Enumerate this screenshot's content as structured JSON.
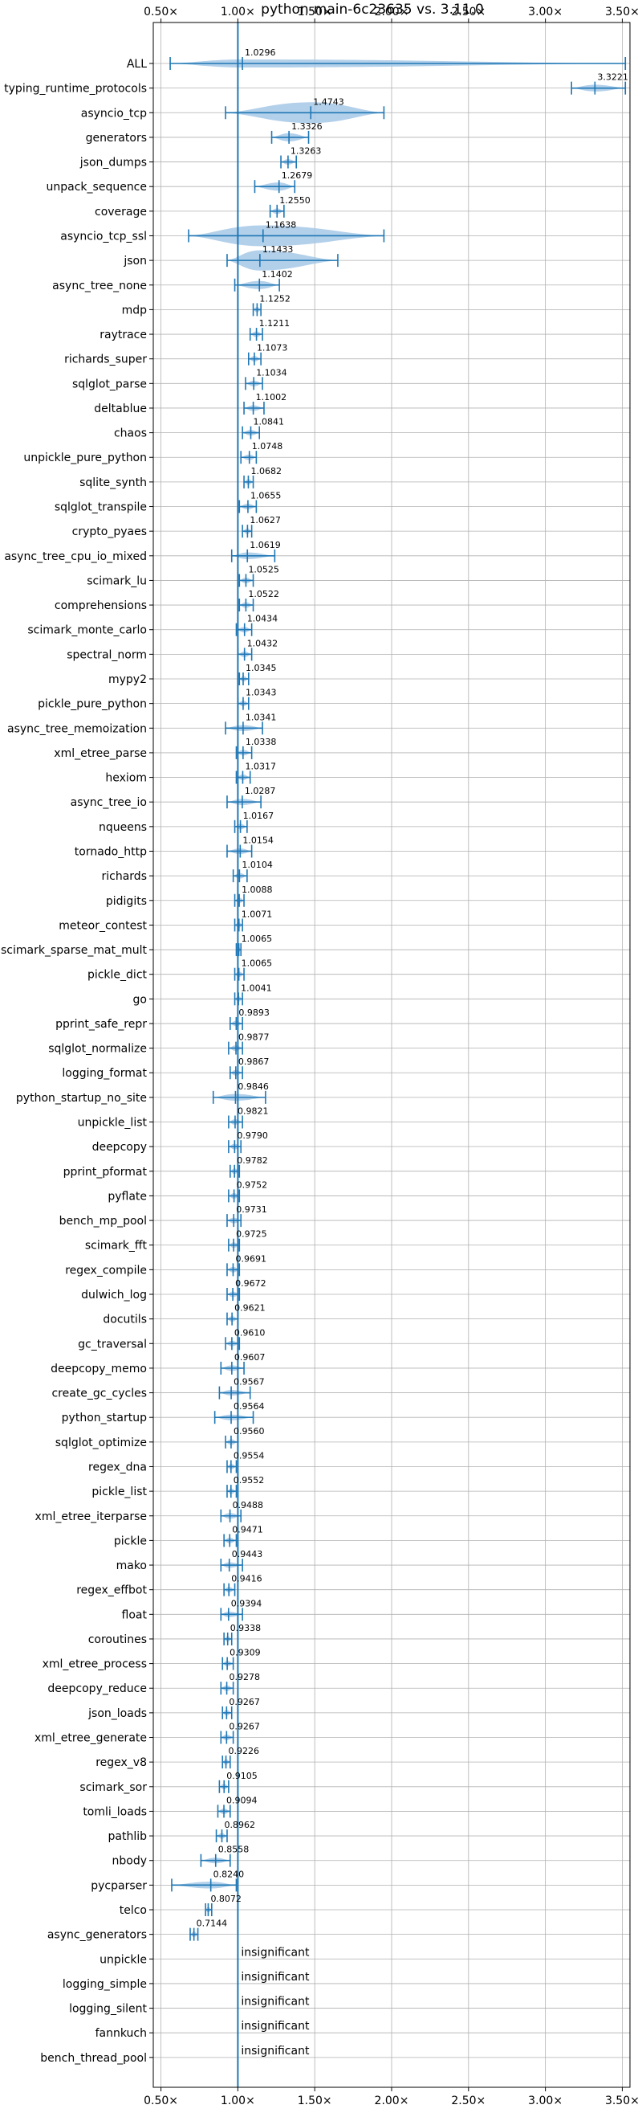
{
  "chart_data": {
    "type": "violin",
    "title": "python-main-6c23635 vs. 3.11.0",
    "xlim": [
      0.45,
      3.55
    ],
    "xticks": [
      0.5,
      1.0,
      1.5,
      2.0,
      2.5,
      3.0,
      3.5
    ],
    "xtick_labels": [
      "0.50×",
      "1.00×",
      "1.50×",
      "2.00×",
      "2.50×",
      "3.00×",
      "3.50×"
    ],
    "grid": true,
    "reference_line": 1.0,
    "colors": {
      "line": "#1f77b4",
      "violin": "#a6c8e6",
      "grid": "#b0b0b0"
    },
    "insignificant_text": "insignificant",
    "benchmarks": [
      {
        "name": "ALL",
        "label": "1.0296",
        "median": 1.0296,
        "min": 0.56,
        "max": 3.52,
        "w": 0.12
      },
      {
        "name": "typing_runtime_protocols",
        "label": "3.3221",
        "median": 3.3221,
        "min": 3.17,
        "max": 3.52,
        "w": 0.1
      },
      {
        "name": "asyncio_tcp",
        "label": "1.4743",
        "median": 1.4743,
        "min": 0.92,
        "max": 1.95,
        "w": 0.42
      },
      {
        "name": "generators",
        "label": "1.3326",
        "median": 1.3326,
        "min": 1.22,
        "max": 1.46,
        "w": 0.12
      },
      {
        "name": "json_dumps",
        "label": "1.3263",
        "median": 1.3263,
        "min": 1.28,
        "max": 1.38,
        "w": 0.06
      },
      {
        "name": "unpack_sequence",
        "label": "1.2679",
        "median": 1.2679,
        "min": 1.11,
        "max": 1.37,
        "w": 0.12
      },
      {
        "name": "coverage",
        "label": "1.2550",
        "median": 1.255,
        "min": 1.21,
        "max": 1.3,
        "w": 0.05
      },
      {
        "name": "asyncio_tcp_ssl",
        "label": "1.1638",
        "median": 1.1638,
        "min": 0.68,
        "max": 1.95,
        "w": 0.4
      },
      {
        "name": "json",
        "label": "1.1433",
        "median": 1.1433,
        "min": 0.93,
        "max": 1.65,
        "w": 0.3
      },
      {
        "name": "async_tree_none",
        "label": "1.1402",
        "median": 1.1402,
        "min": 0.98,
        "max": 1.27,
        "w": 0.12
      },
      {
        "name": "mdp",
        "label": "1.1252",
        "median": 1.1252,
        "min": 1.1,
        "max": 1.15,
        "w": 0.03
      },
      {
        "name": "raytrace",
        "label": "1.1211",
        "median": 1.1211,
        "min": 1.08,
        "max": 1.16,
        "w": 0.04
      },
      {
        "name": "richards_super",
        "label": "1.1073",
        "median": 1.1073,
        "min": 1.07,
        "max": 1.15,
        "w": 0.04
      },
      {
        "name": "sqlglot_parse",
        "label": "1.1034",
        "median": 1.1034,
        "min": 1.05,
        "max": 1.16,
        "w": 0.05
      },
      {
        "name": "deltablue",
        "label": "1.1002",
        "median": 1.1002,
        "min": 1.04,
        "max": 1.17,
        "w": 0.06
      },
      {
        "name": "chaos",
        "label": "1.0841",
        "median": 1.0841,
        "min": 1.03,
        "max": 1.14,
        "w": 0.05
      },
      {
        "name": "unpickle_pure_python",
        "label": "1.0748",
        "median": 1.0748,
        "min": 1.02,
        "max": 1.12,
        "w": 0.05
      },
      {
        "name": "sqlite_synth",
        "label": "1.0682",
        "median": 1.0682,
        "min": 1.04,
        "max": 1.1,
        "w": 0.03
      },
      {
        "name": "sqlglot_transpile",
        "label": "1.0655",
        "median": 1.0655,
        "min": 1.01,
        "max": 1.12,
        "w": 0.05
      },
      {
        "name": "crypto_pyaes",
        "label": "1.0627",
        "median": 1.0627,
        "min": 1.03,
        "max": 1.09,
        "w": 0.03
      },
      {
        "name": "async_tree_cpu_io_mixed",
        "label": "1.0619",
        "median": 1.0619,
        "min": 0.96,
        "max": 1.24,
        "w": 0.1
      },
      {
        "name": "scimark_lu",
        "label": "1.0525",
        "median": 1.0525,
        "min": 1.01,
        "max": 1.1,
        "w": 0.04
      },
      {
        "name": "comprehensions",
        "label": "1.0522",
        "median": 1.0522,
        "min": 1.01,
        "max": 1.1,
        "w": 0.04
      },
      {
        "name": "scimark_monte_carlo",
        "label": "1.0434",
        "median": 1.0434,
        "min": 0.99,
        "max": 1.09,
        "w": 0.04
      },
      {
        "name": "spectral_norm",
        "label": "1.0432",
        "median": 1.0432,
        "min": 1.0,
        "max": 1.09,
        "w": 0.04
      },
      {
        "name": "mypy2",
        "label": "1.0345",
        "median": 1.0345,
        "min": 1.01,
        "max": 1.07,
        "w": 0.03
      },
      {
        "name": "pickle_pure_python",
        "label": "1.0343",
        "median": 1.0343,
        "min": 1.0,
        "max": 1.07,
        "w": 0.03
      },
      {
        "name": "async_tree_memoization",
        "label": "1.0341",
        "median": 1.0341,
        "min": 0.92,
        "max": 1.16,
        "w": 0.09
      },
      {
        "name": "xml_etree_parse",
        "label": "1.0338",
        "median": 1.0338,
        "min": 0.99,
        "max": 1.09,
        "w": 0.04
      },
      {
        "name": "hexiom",
        "label": "1.0317",
        "median": 1.0317,
        "min": 0.99,
        "max": 1.08,
        "w": 0.04
      },
      {
        "name": "async_tree_io",
        "label": "1.0287",
        "median": 1.0287,
        "min": 0.93,
        "max": 1.15,
        "w": 0.09
      },
      {
        "name": "nqueens",
        "label": "1.0167",
        "median": 1.0167,
        "min": 0.98,
        "max": 1.06,
        "w": 0.04
      },
      {
        "name": "tornado_http",
        "label": "1.0154",
        "median": 1.0154,
        "min": 0.93,
        "max": 1.09,
        "w": 0.06
      },
      {
        "name": "richards",
        "label": "1.0104",
        "median": 1.0104,
        "min": 0.97,
        "max": 1.06,
        "w": 0.04
      },
      {
        "name": "pidigits",
        "label": "1.0088",
        "median": 1.0088,
        "min": 0.98,
        "max": 1.04,
        "w": 0.03
      },
      {
        "name": "meteor_contest",
        "label": "1.0071",
        "median": 1.0071,
        "min": 0.98,
        "max": 1.03,
        "w": 0.03
      },
      {
        "name": "scimark_sparse_mat_mult",
        "label": "1.0065",
        "median": 1.0065,
        "min": 0.99,
        "max": 1.02,
        "w": 0.02
      },
      {
        "name": "pickle_dict",
        "label": "1.0065",
        "median": 1.0065,
        "min": 0.98,
        "max": 1.04,
        "w": 0.03
      },
      {
        "name": "go",
        "label": "1.0041",
        "median": 1.0041,
        "min": 0.98,
        "max": 1.03,
        "w": 0.03
      },
      {
        "name": "pprint_safe_repr",
        "label": "0.9893",
        "median": 0.9893,
        "min": 0.95,
        "max": 1.03,
        "w": 0.04
      },
      {
        "name": "sqlglot_normalize",
        "label": "0.9877",
        "median": 0.9877,
        "min": 0.94,
        "max": 1.03,
        "w": 0.04
      },
      {
        "name": "logging_format",
        "label": "0.9867",
        "median": 0.9867,
        "min": 0.95,
        "max": 1.03,
        "w": 0.04
      },
      {
        "name": "python_startup_no_site",
        "label": "0.9846",
        "median": 0.9846,
        "min": 0.84,
        "max": 1.18,
        "w": 0.1
      },
      {
        "name": "unpickle_list",
        "label": "0.9821",
        "median": 0.9821,
        "min": 0.94,
        "max": 1.03,
        "w": 0.04
      },
      {
        "name": "deepcopy",
        "label": "0.9790",
        "median": 0.979,
        "min": 0.94,
        "max": 1.02,
        "w": 0.04
      },
      {
        "name": "pprint_pformat",
        "label": "0.9782",
        "median": 0.9782,
        "min": 0.95,
        "max": 1.01,
        "w": 0.03
      },
      {
        "name": "pyflate",
        "label": "0.9752",
        "median": 0.9752,
        "min": 0.94,
        "max": 1.01,
        "w": 0.03
      },
      {
        "name": "bench_mp_pool",
        "label": "0.9731",
        "median": 0.9731,
        "min": 0.93,
        "max": 1.02,
        "w": 0.04
      },
      {
        "name": "scimark_fft",
        "label": "0.9725",
        "median": 0.9725,
        "min": 0.94,
        "max": 1.01,
        "w": 0.03
      },
      {
        "name": "regex_compile",
        "label": "0.9691",
        "median": 0.9691,
        "min": 0.93,
        "max": 1.01,
        "w": 0.04
      },
      {
        "name": "dulwich_log",
        "label": "0.9672",
        "median": 0.9672,
        "min": 0.93,
        "max": 1.01,
        "w": 0.04
      },
      {
        "name": "docutils",
        "label": "0.9621",
        "median": 0.9621,
        "min": 0.93,
        "max": 1.0,
        "w": 0.03
      },
      {
        "name": "gc_traversal",
        "label": "0.9610",
        "median": 0.961,
        "min": 0.92,
        "max": 1.01,
        "w": 0.04
      },
      {
        "name": "deepcopy_memo",
        "label": "0.9607",
        "median": 0.9607,
        "min": 0.89,
        "max": 1.04,
        "w": 0.06
      },
      {
        "name": "create_gc_cycles",
        "label": "0.9567",
        "median": 0.9567,
        "min": 0.88,
        "max": 1.08,
        "w": 0.07
      },
      {
        "name": "python_startup",
        "label": "0.9564",
        "median": 0.9564,
        "min": 0.85,
        "max": 1.1,
        "w": 0.08
      },
      {
        "name": "sqlglot_optimize",
        "label": "0.9560",
        "median": 0.956,
        "min": 0.92,
        "max": 1.0,
        "w": 0.04
      },
      {
        "name": "regex_dna",
        "label": "0.9554",
        "median": 0.9554,
        "min": 0.93,
        "max": 0.99,
        "w": 0.03
      },
      {
        "name": "pickle_list",
        "label": "0.9552",
        "median": 0.9552,
        "min": 0.93,
        "max": 0.99,
        "w": 0.03
      },
      {
        "name": "xml_etree_iterparse",
        "label": "0.9488",
        "median": 0.9488,
        "min": 0.89,
        "max": 1.02,
        "w": 0.05
      },
      {
        "name": "pickle",
        "label": "0.9471",
        "median": 0.9471,
        "min": 0.91,
        "max": 0.99,
        "w": 0.04
      },
      {
        "name": "mako",
        "label": "0.9443",
        "median": 0.9443,
        "min": 0.89,
        "max": 1.03,
        "w": 0.05
      },
      {
        "name": "regex_effbot",
        "label": "0.9416",
        "median": 0.9416,
        "min": 0.91,
        "max": 0.98,
        "w": 0.03
      },
      {
        "name": "float",
        "label": "0.9394",
        "median": 0.9394,
        "min": 0.89,
        "max": 1.03,
        "w": 0.05
      },
      {
        "name": "coroutines",
        "label": "0.9338",
        "median": 0.9338,
        "min": 0.91,
        "max": 0.96,
        "w": 0.03
      },
      {
        "name": "xml_etree_process",
        "label": "0.9309",
        "median": 0.9309,
        "min": 0.9,
        "max": 0.97,
        "w": 0.03
      },
      {
        "name": "deepcopy_reduce",
        "label": "0.9278",
        "median": 0.9278,
        "min": 0.89,
        "max": 0.97,
        "w": 0.04
      },
      {
        "name": "json_loads",
        "label": "0.9267",
        "median": 0.9267,
        "min": 0.9,
        "max": 0.96,
        "w": 0.03
      },
      {
        "name": "xml_etree_generate",
        "label": "0.9267",
        "median": 0.9267,
        "min": 0.89,
        "max": 0.97,
        "w": 0.04
      },
      {
        "name": "regex_v8",
        "label": "0.9226",
        "median": 0.9226,
        "min": 0.9,
        "max": 0.95,
        "w": 0.03
      },
      {
        "name": "scimark_sor",
        "label": "0.9105",
        "median": 0.9105,
        "min": 0.88,
        "max": 0.94,
        "w": 0.03
      },
      {
        "name": "tomli_loads",
        "label": "0.9094",
        "median": 0.9094,
        "min": 0.87,
        "max": 0.95,
        "w": 0.04
      },
      {
        "name": "pathlib",
        "label": "0.8962",
        "median": 0.8962,
        "min": 0.86,
        "max": 0.93,
        "w": 0.03
      },
      {
        "name": "nbody",
        "label": "0.8558",
        "median": 0.8558,
        "min": 0.76,
        "max": 0.95,
        "w": 0.06
      },
      {
        "name": "pycparser",
        "label": "0.8240",
        "median": 0.824,
        "min": 0.57,
        "max": 0.99,
        "w": 0.1
      },
      {
        "name": "telco",
        "label": "0.8072",
        "median": 0.8072,
        "min": 0.79,
        "max": 0.83,
        "w": 0.03
      },
      {
        "name": "async_generators",
        "label": "0.7144",
        "median": 0.7144,
        "min": 0.69,
        "max": 0.74,
        "w": 0.03
      },
      {
        "name": "unpickle",
        "insignificant": true
      },
      {
        "name": "logging_simple",
        "insignificant": true
      },
      {
        "name": "logging_silent",
        "insignificant": true
      },
      {
        "name": "fannkuch",
        "insignificant": true
      },
      {
        "name": "bench_thread_pool",
        "insignificant": true
      }
    ]
  }
}
